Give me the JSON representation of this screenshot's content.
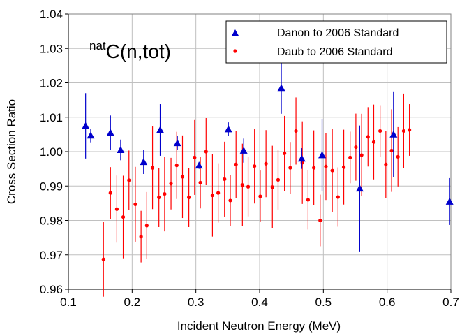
{
  "chart_data": {
    "type": "scatter",
    "xlabel": "Incident Neutron Energy (MeV)",
    "ylabel": "Cross Section Ratio",
    "xlim": [
      0.1,
      0.7
    ],
    "ylim": [
      0.96,
      1.04
    ],
    "xticks": [
      "0.1",
      "0.2",
      "0.3",
      "0.4",
      "0.5",
      "0.6",
      "0.7"
    ],
    "yticks": [
      "0.96",
      "0.97",
      "0.98",
      "0.99",
      "1.00",
      "1.01",
      "1.02",
      "1.03",
      "1.04"
    ],
    "x_tick_values": [
      0.1,
      0.2,
      0.3,
      0.4,
      0.5,
      0.6,
      0.7
    ],
    "y_tick_values": [
      0.96,
      0.97,
      0.98,
      0.99,
      1.0,
      1.01,
      1.02,
      1.03,
      1.04
    ],
    "grid": true,
    "legend_position": "top-right",
    "annotation": {
      "superscript": "nat",
      "text": "C(n,tot)"
    },
    "series": [
      {
        "name": "Danon to 2006 Standard",
        "marker": "triangle",
        "color": "#0000cc",
        "x": [
          0.127,
          0.135,
          0.166,
          0.182,
          0.218,
          0.244,
          0.271,
          0.305,
          0.351,
          0.375,
          0.434,
          0.466,
          0.498,
          0.557,
          0.61,
          0.698
        ],
        "y": [
          1.0075,
          1.0047,
          1.0055,
          1.0005,
          0.997,
          1.0063,
          1.0025,
          0.996,
          1.0065,
          1.0003,
          1.0185,
          0.998,
          0.999,
          0.9893,
          1.005,
          0.9855
        ],
        "err": [
          0.0095,
          0.002,
          0.005,
          0.003,
          0.0035,
          0.0075,
          0.002,
          0.001,
          0.002,
          0.0035,
          0.0075,
          0.003,
          0.0105,
          0.0183,
          0.0125,
          0.0068
        ]
      },
      {
        "name": "Daub to 2006 Standard",
        "marker": "circle",
        "color": "#ff0000",
        "x": [
          0.155,
          0.166,
          0.176,
          0.186,
          0.195,
          0.205,
          0.214,
          0.223,
          0.232,
          0.242,
          0.251,
          0.261,
          0.27,
          0.279,
          0.289,
          0.298,
          0.307,
          0.316,
          0.326,
          0.335,
          0.345,
          0.354,
          0.363,
          0.373,
          0.382,
          0.392,
          0.401,
          0.41,
          0.42,
          0.429,
          0.439,
          0.448,
          0.457,
          0.467,
          0.476,
          0.485,
          0.495,
          0.504,
          0.514,
          0.523,
          0.532,
          0.542,
          0.551,
          0.56,
          0.57,
          0.579,
          0.589,
          0.598,
          0.607,
          0.617,
          0.626,
          0.635
        ],
        "y": [
          0.9687,
          0.988,
          0.9833,
          0.981,
          0.9917,
          0.9847,
          0.9753,
          0.9785,
          0.9953,
          0.9867,
          0.9877,
          0.9907,
          0.996,
          0.9927,
          0.9867,
          0.9983,
          0.991,
          1.0,
          0.9873,
          0.988,
          0.992,
          0.9858,
          0.9963,
          0.9903,
          0.9898,
          0.9958,
          0.987,
          0.9965,
          0.9897,
          0.9918,
          0.9995,
          0.9953,
          1.006,
          0.9968,
          0.986,
          0.9953,
          0.98,
          0.9957,
          0.9945,
          0.9868,
          0.9955,
          0.9983,
          1.0013,
          0.999,
          1.0043,
          1.0028,
          1.006,
          0.9963,
          1.0003,
          0.9985,
          1.006,
          1.0063
        ]
      }
    ]
  }
}
